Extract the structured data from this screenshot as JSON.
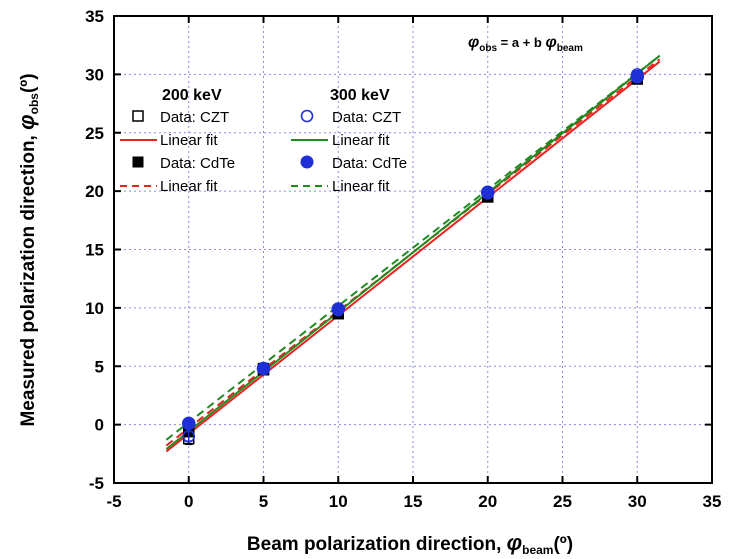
{
  "chart_data": {
    "type": "scatter",
    "xlabel": "Beam polarization direction, ",
    "xlabel_symbol": "φ",
    "xlabel_sub": "beam",
    "xlabel_unit": "(º)",
    "ylabel": "Measured polarization direction, ",
    "ylabel_symbol": "φ",
    "ylabel_sub": "obs",
    "ylabel_unit": "(º)",
    "xlim": [
      -5,
      35
    ],
    "ylim": [
      -5,
      35
    ],
    "xticks": [
      "-5",
      "0",
      "5",
      "10",
      "15",
      "20",
      "25",
      "30",
      "35"
    ],
    "yticks": [
      "-5",
      "0",
      "5",
      "10",
      "15",
      "20",
      "25",
      "30",
      "35"
    ],
    "grid": true,
    "equation": {
      "lhs_symbol": "φ",
      "lhs_sub": "obs",
      "middle": " = a + b ",
      "rhs_symbol": "φ",
      "rhs_sub": "beam"
    },
    "legend": {
      "group_200": "200 keV",
      "group_300": "300 keV",
      "entries_200": [
        "Data: CZT",
        "Linear fit",
        "Data: CdTe",
        "Linear fit"
      ],
      "entries_300": [
        "Data: CZT",
        "Linear fit",
        "Data: CdTe",
        "Linear fit"
      ]
    },
    "series": [
      {
        "name": "Data: CZT",
        "group": "200 keV",
        "kind": "points",
        "marker": "square-open",
        "color": "#000000",
        "x": [
          0,
          5,
          10,
          20,
          30
        ],
        "y": [
          -1.2,
          4.7,
          9.5,
          19.5,
          29.7
        ],
        "yerr": [
          0.5,
          0.3,
          0.3,
          0.3,
          0.3
        ]
      },
      {
        "name": "Linear fit",
        "group": "200 keV",
        "kind": "line",
        "dash": "solid",
        "color": "#e8221f",
        "x": [
          -1.5,
          31.5
        ],
        "y": [
          -2.3,
          31.1
        ]
      },
      {
        "name": "Data: CdTe",
        "group": "200 keV",
        "kind": "points",
        "marker": "square-filled",
        "color": "#000000",
        "x": [
          0,
          5,
          10,
          20,
          30
        ],
        "y": [
          -0.6,
          4.8,
          9.6,
          19.6,
          29.6
        ],
        "yerr": [
          0.3,
          0.2,
          0.2,
          0.2,
          0.2
        ]
      },
      {
        "name": "Linear fit",
        "group": "200 keV",
        "kind": "line",
        "dash": "dashed",
        "color": "#e8221f",
        "x": [
          -1.5,
          31.5
        ],
        "y": [
          -1.8,
          31.3
        ]
      },
      {
        "name": "Data: CZT",
        "group": "300 keV",
        "kind": "points",
        "marker": "circle-open",
        "color": "#1f2fd6",
        "x": [
          0,
          5,
          10,
          20,
          30
        ],
        "y": [
          -1.0,
          4.8,
          9.8,
          19.8,
          30.0
        ],
        "yerr": [
          0.4,
          0.2,
          0.2,
          0.2,
          0.2
        ]
      },
      {
        "name": "Linear fit",
        "group": "300 keV",
        "kind": "line",
        "dash": "solid",
        "color": "#1f8a1f",
        "x": [
          -1.5,
          31.5
        ],
        "y": [
          -2.1,
          31.6
        ]
      },
      {
        "name": "Data: CdTe",
        "group": "300 keV",
        "kind": "points",
        "marker": "circle-filled",
        "color": "#1f2fd6",
        "x": [
          0,
          5,
          10,
          20,
          30
        ],
        "y": [
          0.1,
          4.8,
          9.9,
          19.9,
          29.8
        ],
        "yerr": [
          0.2,
          0.2,
          0.2,
          0.2,
          0.2
        ]
      },
      {
        "name": "Linear fit",
        "group": "300 keV",
        "kind": "line",
        "dash": "dashed",
        "color": "#1f8a1f",
        "x": [
          -1.5,
          31.5
        ],
        "y": [
          -1.3,
          31.6
        ]
      }
    ]
  }
}
